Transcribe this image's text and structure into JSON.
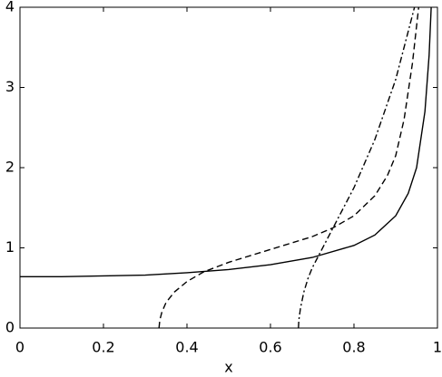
{
  "chart_data": {
    "type": "line",
    "x_label": "x",
    "xlim": [
      0,
      1
    ],
    "ylim": [
      0,
      4
    ],
    "xticks": [
      0,
      0.2,
      0.4,
      0.6,
      0.8,
      1
    ],
    "yticks": [
      0,
      1,
      2,
      3,
      4
    ],
    "series": [
      {
        "color": "#000000",
        "dash": "solid",
        "x": [
          0,
          0.1,
          0.2,
          0.3,
          0.4,
          0.5,
          0.6,
          0.7,
          0.8,
          0.85,
          0.9,
          0.93,
          0.95,
          0.97,
          0.98,
          0.985
        ],
        "values": [
          0.64,
          0.64,
          0.65,
          0.66,
          0.69,
          0.73,
          0.79,
          0.88,
          1.03,
          1.16,
          1.4,
          1.68,
          2.0,
          2.7,
          3.4,
          4.0
        ]
      },
      {
        "color": "#000000",
        "dash": "dashed",
        "x": [
          0.333,
          0.335,
          0.34,
          0.35,
          0.37,
          0.4,
          0.44,
          0.5,
          0.6,
          0.7,
          0.75,
          0.8,
          0.85,
          0.88,
          0.9,
          0.92,
          0.94,
          0.955
        ],
        "values": [
          0,
          0.1,
          0.2,
          0.32,
          0.45,
          0.58,
          0.7,
          0.82,
          0.98,
          1.14,
          1.25,
          1.4,
          1.65,
          1.9,
          2.15,
          2.6,
          3.3,
          4.0
        ]
      },
      {
        "color": "#000000",
        "dash": "dashdot",
        "x": [
          0.667,
          0.668,
          0.672,
          0.68,
          0.69,
          0.7,
          0.72,
          0.75,
          0.8,
          0.85,
          0.9,
          0.93,
          0.945
        ],
        "values": [
          0,
          0.1,
          0.25,
          0.45,
          0.62,
          0.75,
          0.95,
          1.25,
          1.75,
          2.35,
          3.1,
          3.7,
          4.0
        ]
      }
    ]
  }
}
